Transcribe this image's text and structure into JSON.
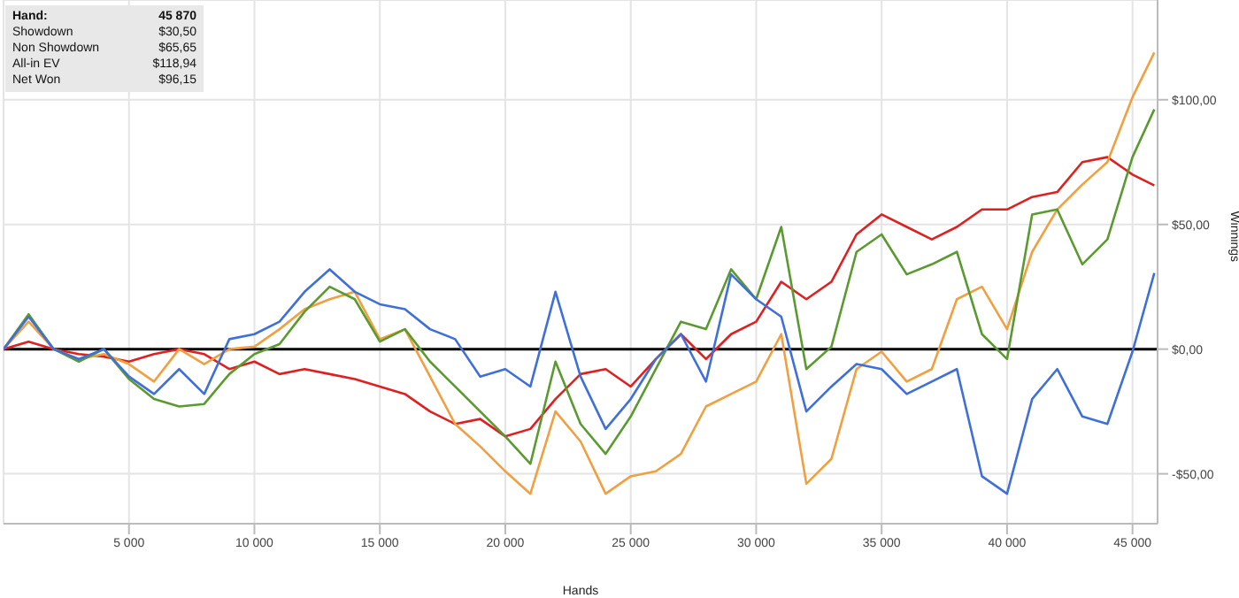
{
  "chart_data": {
    "type": "line",
    "xlabel": "Hands",
    "ylabel": "Winnings",
    "annotations": [
      "Hand:",
      "45 870",
      "Showdown",
      "$30,50",
      "Non Showdown",
      "$65,65",
      "All-in EV",
      "$118,94",
      "Net Won",
      "$96,15"
    ],
    "x": [
      0,
      1000,
      2000,
      3000,
      4000,
      5000,
      6000,
      7000,
      8000,
      9000,
      10000,
      11000,
      12000,
      13000,
      14000,
      15000,
      16000,
      17000,
      18000,
      19000,
      20000,
      21000,
      22000,
      23000,
      24000,
      25000,
      26000,
      27000,
      28000,
      29000,
      30000,
      31000,
      32000,
      33000,
      34000,
      35000,
      36000,
      37000,
      38000,
      39000,
      40000,
      41000,
      42000,
      43000,
      44000,
      45000,
      45870
    ],
    "series": [
      {
        "color": "#e02020",
        "values": [
          0,
          3,
          0,
          -2,
          -3,
          -5,
          -2,
          0,
          -2,
          -8,
          -5,
          -10,
          -8,
          -10,
          -12,
          -15,
          -18,
          -25,
          -30,
          -28,
          -35,
          -32,
          -20,
          -10,
          -8,
          -15,
          -4,
          6,
          -4,
          6,
          11,
          27,
          20,
          27,
          46,
          54,
          49,
          44,
          49,
          56,
          56,
          61,
          63,
          75,
          77,
          70,
          65.65
        ]
      },
      {
        "color": "#f0a040",
        "values": [
          0,
          11,
          0,
          -4,
          -2,
          -6,
          -13,
          0,
          -6,
          0,
          1,
          8,
          16,
          20,
          23,
          4,
          8,
          -11,
          -30,
          -39,
          -49,
          -58,
          -25,
          -37,
          -58,
          -51,
          -49,
          -42,
          -23,
          -18,
          -13,
          6,
          -54,
          -44,
          -8,
          -1,
          -13,
          -8,
          20,
          25,
          8,
          39,
          56,
          66,
          75,
          101,
          118.94
        ]
      },
      {
        "color": "#5a9a30",
        "values": [
          0,
          14,
          0,
          -5,
          0,
          -12,
          -20,
          -23,
          -22,
          -10,
          -2,
          2,
          15,
          25,
          20,
          3,
          8,
          -5,
          -15,
          -25,
          -35,
          -46,
          -5,
          -30,
          -42,
          -27,
          -8,
          11,
          8,
          32,
          20,
          49,
          -8,
          1,
          39,
          46,
          30,
          34,
          39,
          6,
          -4,
          54,
          56,
          34,
          44,
          77,
          96.15
        ]
      },
      {
        "color": "#3f6fd8",
        "values": [
          0,
          13,
          0,
          -4,
          0,
          -11,
          -18,
          -8,
          -18,
          4,
          6,
          11,
          23,
          32,
          23,
          18,
          16,
          8,
          4,
          -11,
          -8,
          -15,
          23,
          -11,
          -32,
          -20,
          -4,
          6,
          -13,
          30,
          20,
          13,
          -25,
          -15,
          -6,
          -8,
          -18,
          -13,
          -8,
          -51,
          -58,
          -20,
          -8,
          -27,
          -30,
          -1,
          30.5
        ]
      }
    ],
    "xlim": [
      0,
      46000
    ],
    "xticks": [
      {
        "value": 5000,
        "label": "5 000"
      },
      {
        "value": 10000,
        "label": "10 000"
      },
      {
        "value": 15000,
        "label": "15 000"
      },
      {
        "value": 20000,
        "label": "20 000"
      },
      {
        "value": 25000,
        "label": "25 000"
      },
      {
        "value": 30000,
        "label": "30 000"
      },
      {
        "value": 35000,
        "label": "35 000"
      },
      {
        "value": 40000,
        "label": "40 000"
      },
      {
        "value": 45000,
        "label": "45 000"
      }
    ],
    "ylim": [
      -70,
      140
    ],
    "yticks": [
      {
        "value": -50,
        "label": "-$50,00"
      },
      {
        "value": 0,
        "label": "$0,00"
      },
      {
        "value": 50,
        "label": "$50,00"
      },
      {
        "value": 100,
        "label": "$100,00"
      }
    ],
    "ref_lines": [
      {
        "axis": "y",
        "value": 0,
        "color": "#000000"
      }
    ],
    "grid": true,
    "legend": false
  }
}
